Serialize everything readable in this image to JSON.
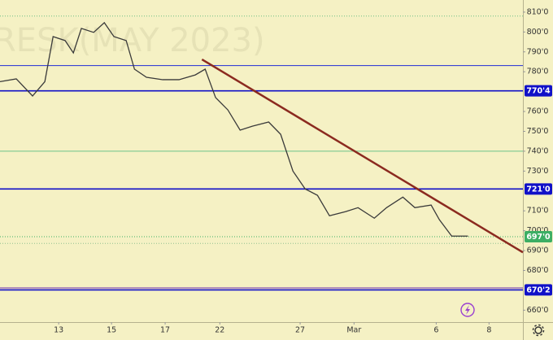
{
  "chart_data": {
    "type": "line",
    "watermark": "RESK(MAY 2023)",
    "x": [
      -2.2,
      -1.59,
      -0.98,
      -0.52,
      -0.21,
      0.24,
      0.55,
      0.85,
      1.31,
      1.71,
      2.07,
      2.53,
      2.84,
      3.29,
      3.9,
      4.51,
      5.12,
      5.49,
      5.88,
      6.34,
      6.8,
      7.26,
      7.87,
      8.32,
      8.78,
      9.24,
      9.7,
      10.15,
      10.76,
      11.22,
      11.83,
      12.29,
      12.9,
      13.35,
      13.96,
      14.27,
      14.73,
      15.03,
      15.34
    ],
    "series": [
      {
        "color": "#3a3a3a",
        "values": [
          775,
          776.4,
          767.8,
          775,
          797.7,
          795.7,
          789.5,
          801.8,
          799.8,
          804.7,
          797.7,
          795.7,
          781.3,
          777.2,
          776,
          776,
          778.4,
          781.3,
          767,
          760.8,
          750.6,
          752.6,
          754.7,
          748.5,
          730,
          721,
          717.8,
          707.5,
          709.6,
          711.6,
          706.3,
          711.6,
          716.9,
          711.6,
          712.9,
          705.5,
          697.3,
          697.3,
          697.3
        ]
      }
    ],
    "xlim": [
      -2.2,
      17.4
    ],
    "xticks": [
      {
        "value": 0,
        "label": "13"
      },
      {
        "value": 1.98,
        "label": "15"
      },
      {
        "value": 3.99,
        "label": "17"
      },
      {
        "value": 6.04,
        "label": "22"
      },
      {
        "value": 9.05,
        "label": "27"
      },
      {
        "value": 11.07,
        "label": "Mar"
      },
      {
        "value": 14.15,
        "label": "6"
      },
      {
        "value": 16.13,
        "label": "8"
      }
    ],
    "ylim": [
      654,
      816.1
    ],
    "yticks": [
      {
        "value": 810,
        "label": "810'0"
      },
      {
        "value": 800,
        "label": "800'0"
      },
      {
        "value": 790,
        "label": "790'0"
      },
      {
        "value": 780,
        "label": "780'0"
      },
      {
        "value": 760,
        "label": "760'0"
      },
      {
        "value": 750,
        "label": "750'0"
      },
      {
        "value": 740,
        "label": "740'0"
      },
      {
        "value": 730,
        "label": "730'0"
      },
      {
        "value": 710,
        "label": "710'0"
      },
      {
        "value": 700,
        "label": "700'0"
      },
      {
        "value": 690,
        "label": "690'0"
      },
      {
        "value": 680,
        "label": "680'0"
      },
      {
        "value": 660,
        "label": "660'0"
      }
    ],
    "levels": [
      {
        "value": 808,
        "color": "#6cbf84",
        "style": "dotted"
      },
      {
        "value": 783.1,
        "color": "#1f2bd6"
      },
      {
        "value": 770.4,
        "label": "770'4",
        "color": "#1010c8"
      },
      {
        "value": 740,
        "color": "#6cc48a"
      },
      {
        "value": 721,
        "label": "721'0",
        "color": "#1010c8"
      },
      {
        "value": 697,
        "label": "697'0",
        "color": "#3cae64",
        "style": "dotted"
      },
      {
        "value": 693.6,
        "color": "#8fbf8f",
        "style": "dotted"
      },
      {
        "value": 671.2,
        "color": "#6a2bb0"
      },
      {
        "value": 670.2,
        "label": "670'2",
        "color": "#1010c8"
      }
    ],
    "trendline": {
      "x": [
        5.37,
        17.4
      ],
      "values": [
        786.2,
        689.1
      ],
      "color": "#8b2a1f"
    }
  }
}
